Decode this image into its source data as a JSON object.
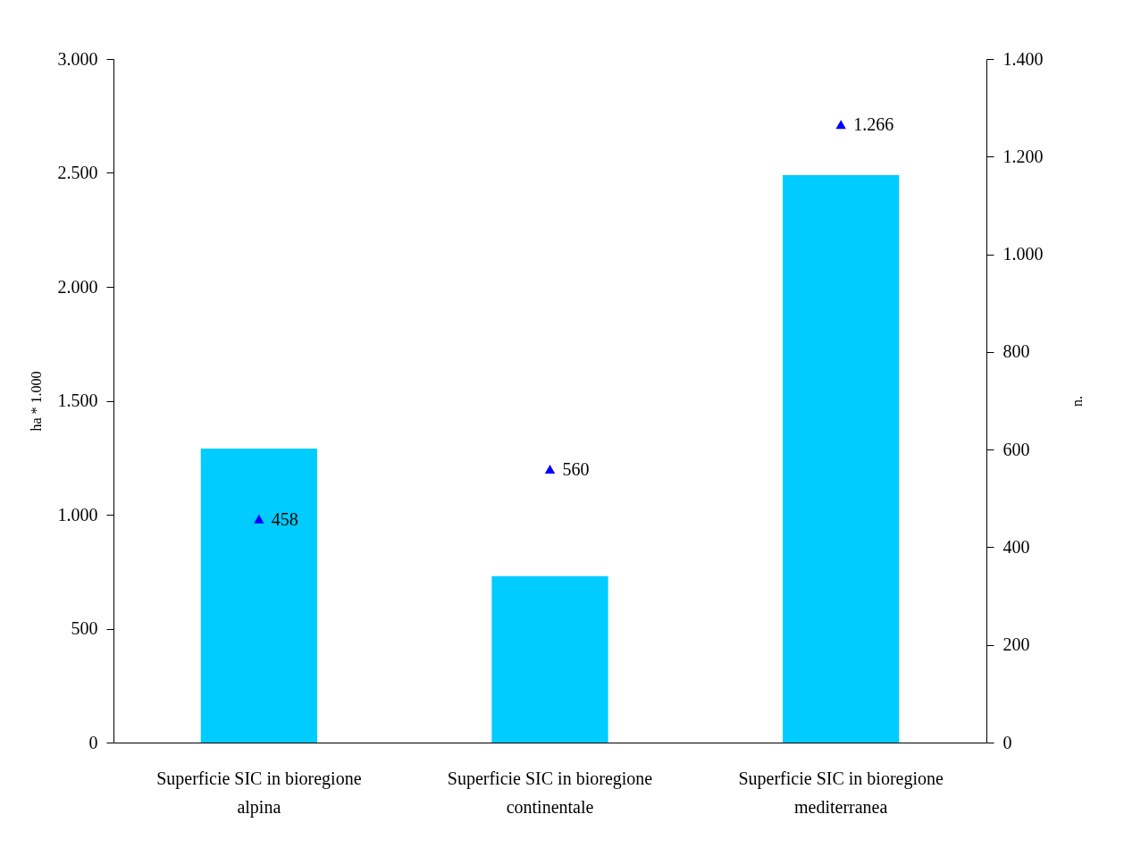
{
  "chart_data": {
    "type": "bar",
    "ylabel": "ha * 1.000",
    "y2label": "n.",
    "categories": [
      "Superficie SIC in bioregione alpina",
      "Superficie SIC in bioregione continentale",
      "Superficie SIC in bioregione mediterranea"
    ],
    "series": [
      {
        "color": "#00ccff",
        "values": [
          1290,
          730,
          2490
        ]
      },
      {
        "type": "scatter",
        "axis": "y2",
        "color": "#0000ff",
        "values": [
          458,
          560,
          1266
        ],
        "value_labels": [
          "458",
          "560",
          "1.266"
        ]
      }
    ],
    "marker": "triangle",
    "ylim": [
      0,
      3000
    ],
    "yticks": [
      0,
      500,
      {
        "value": 1000,
        "label": "1.000"
      },
      {
        "value": 1500,
        "label": "1.500"
      },
      {
        "value": 2000,
        "label": "2.000"
      },
      {
        "value": 2500,
        "label": "2.500"
      },
      {
        "value": 3000,
        "label": "3.000"
      }
    ],
    "y2lim": [
      0,
      1400
    ],
    "y2ticks": [
      0,
      200,
      400,
      600,
      800,
      {
        "value": 1000,
        "label": "1.000"
      },
      {
        "value": 1200,
        "label": "1.200"
      },
      {
        "value": 1400,
        "label": "1.400"
      }
    ]
  }
}
